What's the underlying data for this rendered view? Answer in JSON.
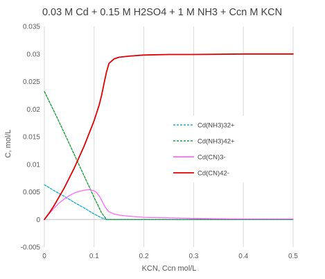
{
  "chart_data": {
    "type": "line",
    "title": "0.03 M Cd + 0.15 M H2SO4 + 1 M NH3 + Ccn M KCN",
    "xlabel": "KCN, Ccn mol/L",
    "ylabel": "C, mol/L",
    "xlim": [
      0,
      0.5
    ],
    "ylim": [
      -0.005,
      0.035
    ],
    "x_ticks": [
      0,
      0.1,
      0.2,
      0.3,
      0.4,
      0.5
    ],
    "x_tick_labels": [
      "0",
      "0.1",
      "0.2",
      "0.3",
      "0.4",
      "0.5"
    ],
    "y_ticks": [
      -0.005,
      0,
      0.005,
      0.01,
      0.015,
      0.02,
      0.025,
      0.03,
      0.035
    ],
    "y_tick_labels": [
      "-0.005",
      "0",
      "0.005",
      "0.01",
      "0.015",
      "0.02",
      "0.025",
      "0.03",
      "0.035"
    ],
    "grid": "vertical",
    "legend_position": "right",
    "series": [
      {
        "name": "Cd(NH3)32+",
        "color": "#1aafcf",
        "dash": "dashed",
        "x": [
          0,
          0.02,
          0.04,
          0.06,
          0.08,
          0.1,
          0.115,
          0.125,
          0.15,
          0.2,
          0.3,
          0.4,
          0.5
        ],
        "y": [
          0.0063,
          0.0052,
          0.0042,
          0.0031,
          0.0021,
          0.001,
          0.0003,
          0.0,
          0.0,
          0.0,
          0.0,
          0.0,
          0.0
        ]
      },
      {
        "name": "Cd(NH3)42+",
        "color": "#1f9e3a",
        "dash": "dashed",
        "x": [
          0,
          0.02,
          0.04,
          0.06,
          0.08,
          0.1,
          0.115,
          0.125,
          0.15,
          0.2,
          0.3,
          0.4,
          0.5
        ],
        "y": [
          0.0232,
          0.0195,
          0.0157,
          0.0118,
          0.0079,
          0.004,
          0.0012,
          0.0,
          0.0,
          0.0,
          0.0,
          0.0,
          0.0
        ]
      },
      {
        "name": "Cd(CN)3-",
        "color": "#ff66ff",
        "dash": "solid",
        "x": [
          0,
          0.01,
          0.02,
          0.03,
          0.04,
          0.05,
          0.06,
          0.07,
          0.08,
          0.09,
          0.1,
          0.105,
          0.11,
          0.115,
          0.12,
          0.125,
          0.13,
          0.14,
          0.15,
          0.17,
          0.2,
          0.25,
          0.3,
          0.4,
          0.5
        ],
        "y": [
          0.0,
          0.0011,
          0.0021,
          0.003,
          0.0037,
          0.0043,
          0.0048,
          0.0051,
          0.0053,
          0.0054,
          0.0052,
          0.0049,
          0.0043,
          0.0035,
          0.0026,
          0.0019,
          0.0014,
          0.001,
          0.0008,
          0.0006,
          0.0004,
          0.0003,
          0.0002,
          0.0001,
          0.0001
        ]
      },
      {
        "name": "Cd(CN)42-",
        "color": "#e00000",
        "dash": "solid",
        "x": [
          0,
          0.01,
          0.02,
          0.04,
          0.06,
          0.08,
          0.1,
          0.11,
          0.115,
          0.12,
          0.125,
          0.13,
          0.14,
          0.15,
          0.17,
          0.2,
          0.25,
          0.3,
          0.4,
          0.5
        ],
        "y": [
          0.0,
          0.0012,
          0.0026,
          0.0057,
          0.0093,
          0.0133,
          0.0179,
          0.0207,
          0.0225,
          0.0247,
          0.0268,
          0.0283,
          0.0291,
          0.0294,
          0.0296,
          0.0298,
          0.0299,
          0.0299,
          0.03,
          0.03
        ]
      }
    ]
  }
}
